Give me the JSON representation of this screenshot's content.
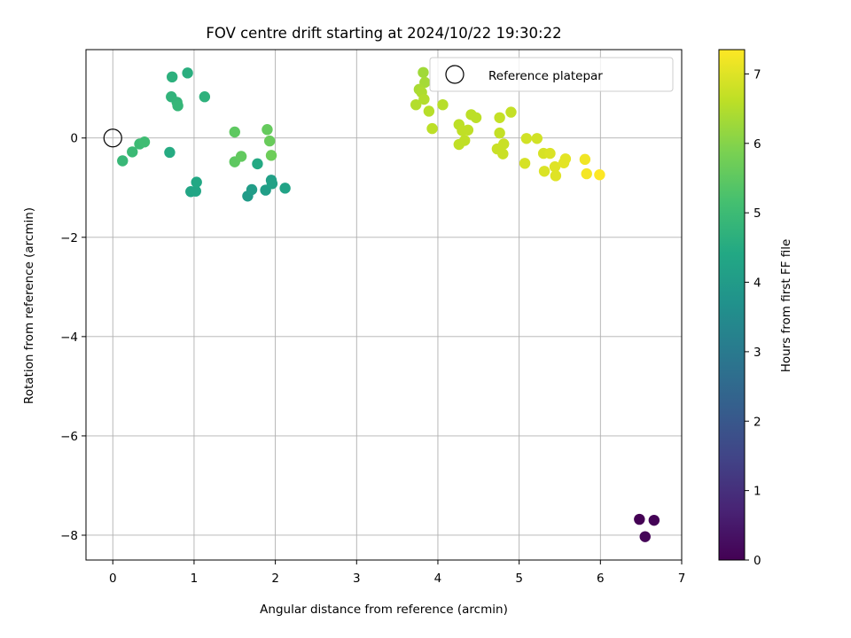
{
  "chart_data": {
    "type": "scatter",
    "title": "FOV centre drift starting at 2024/10/22 19:30:22",
    "xlabel": "Angular distance from reference (arcmin)",
    "ylabel": "Rotation from reference (arcmin)",
    "xlim": [
      -0.33,
      7.0
    ],
    "ylim": [
      -8.5,
      1.78
    ],
    "xticks": [
      0,
      1,
      2,
      3,
      4,
      5,
      6,
      7
    ],
    "yticks": [
      -8,
      -6,
      -4,
      -2,
      0
    ],
    "grid": true,
    "legend": {
      "placement": "top-right",
      "entries": [
        "Reference platepar"
      ]
    },
    "reference_point": {
      "x": 0,
      "y": 0
    },
    "colorbar": {
      "label": "Hours from first FF file",
      "range": [
        0,
        7.35
      ],
      "ticks": [
        0,
        1,
        2,
        3,
        4,
        5,
        6,
        7
      ],
      "colormap": "viridis"
    },
    "points": [
      {
        "x": 6.48,
        "y": -7.68,
        "t": 0.0
      },
      {
        "x": 6.66,
        "y": -7.7,
        "t": 0.05
      },
      {
        "x": 6.55,
        "y": -8.03,
        "t": 0.1
      },
      {
        "x": 1.66,
        "y": -1.17,
        "t": 4.0
      },
      {
        "x": 1.71,
        "y": -1.04,
        "t": 4.05
      },
      {
        "x": 1.88,
        "y": -1.05,
        "t": 4.1
      },
      {
        "x": 1.95,
        "y": -0.85,
        "t": 4.15
      },
      {
        "x": 1.96,
        "y": -0.92,
        "t": 4.2
      },
      {
        "x": 2.12,
        "y": -1.01,
        "t": 4.25
      },
      {
        "x": 0.96,
        "y": -1.08,
        "t": 4.3
      },
      {
        "x": 1.02,
        "y": -1.07,
        "t": 4.35
      },
      {
        "x": 1.03,
        "y": -0.89,
        "t": 4.4
      },
      {
        "x": 1.78,
        "y": -0.52,
        "t": 4.45
      },
      {
        "x": 0.7,
        "y": -0.29,
        "t": 4.5
      },
      {
        "x": 0.92,
        "y": 1.31,
        "t": 4.6
      },
      {
        "x": 0.73,
        "y": 1.23,
        "t": 4.65
      },
      {
        "x": 1.13,
        "y": 0.83,
        "t": 4.7
      },
      {
        "x": 0.72,
        "y": 0.83,
        "t": 4.75
      },
      {
        "x": 0.79,
        "y": 0.72,
        "t": 4.8
      },
      {
        "x": 0.8,
        "y": 0.65,
        "t": 4.85
      },
      {
        "x": 0.12,
        "y": -0.46,
        "t": 4.9
      },
      {
        "x": 0.24,
        "y": -0.28,
        "t": 4.95
      },
      {
        "x": 0.33,
        "y": -0.12,
        "t": 5.0
      },
      {
        "x": 0.39,
        "y": -0.08,
        "t": 5.05
      },
      {
        "x": 1.5,
        "y": 0.12,
        "t": 5.5
      },
      {
        "x": 1.5,
        "y": -0.48,
        "t": 5.5
      },
      {
        "x": 1.58,
        "y": -0.37,
        "t": 5.55
      },
      {
        "x": 1.9,
        "y": 0.17,
        "t": 5.6
      },
      {
        "x": 1.93,
        "y": -0.06,
        "t": 5.65
      },
      {
        "x": 1.95,
        "y": -0.35,
        "t": 5.7
      },
      {
        "x": 3.82,
        "y": 1.32,
        "t": 6.3
      },
      {
        "x": 3.84,
        "y": 1.12,
        "t": 6.35
      },
      {
        "x": 3.77,
        "y": 0.98,
        "t": 6.4
      },
      {
        "x": 3.8,
        "y": 0.92,
        "t": 6.45
      },
      {
        "x": 3.83,
        "y": 0.78,
        "t": 6.5
      },
      {
        "x": 3.73,
        "y": 0.67,
        "t": 6.5
      },
      {
        "x": 4.06,
        "y": 0.67,
        "t": 6.55
      },
      {
        "x": 3.89,
        "y": 0.54,
        "t": 6.55
      },
      {
        "x": 3.93,
        "y": 0.19,
        "t": 6.6
      },
      {
        "x": 4.41,
        "y": 0.47,
        "t": 6.6
      },
      {
        "x": 4.47,
        "y": 0.41,
        "t": 6.6
      },
      {
        "x": 4.26,
        "y": 0.27,
        "t": 6.6
      },
      {
        "x": 4.3,
        "y": 0.15,
        "t": 6.65
      },
      {
        "x": 4.37,
        "y": 0.16,
        "t": 6.65
      },
      {
        "x": 4.33,
        "y": -0.05,
        "t": 6.65
      },
      {
        "x": 4.26,
        "y": -0.13,
        "t": 6.65
      },
      {
        "x": 4.76,
        "y": 0.41,
        "t": 6.7
      },
      {
        "x": 4.9,
        "y": 0.52,
        "t": 6.7
      },
      {
        "x": 4.76,
        "y": 0.1,
        "t": 6.7
      },
      {
        "x": 4.81,
        "y": -0.12,
        "t": 6.75
      },
      {
        "x": 4.73,
        "y": -0.22,
        "t": 6.75
      },
      {
        "x": 4.8,
        "y": -0.32,
        "t": 6.75
      },
      {
        "x": 5.09,
        "y": -0.01,
        "t": 6.85
      },
      {
        "x": 5.22,
        "y": -0.01,
        "t": 6.85
      },
      {
        "x": 5.07,
        "y": -0.51,
        "t": 6.9
      },
      {
        "x": 5.3,
        "y": -0.31,
        "t": 6.9
      },
      {
        "x": 5.38,
        "y": -0.31,
        "t": 6.95
      },
      {
        "x": 5.31,
        "y": -0.67,
        "t": 6.95
      },
      {
        "x": 5.44,
        "y": -0.58,
        "t": 7.0
      },
      {
        "x": 5.45,
        "y": -0.76,
        "t": 7.0
      },
      {
        "x": 5.55,
        "y": -0.5,
        "t": 7.05
      },
      {
        "x": 5.57,
        "y": -0.42,
        "t": 7.05
      },
      {
        "x": 5.81,
        "y": -0.43,
        "t": 7.2
      },
      {
        "x": 5.83,
        "y": -0.72,
        "t": 7.25
      },
      {
        "x": 5.99,
        "y": -0.74,
        "t": 7.35
      }
    ]
  }
}
